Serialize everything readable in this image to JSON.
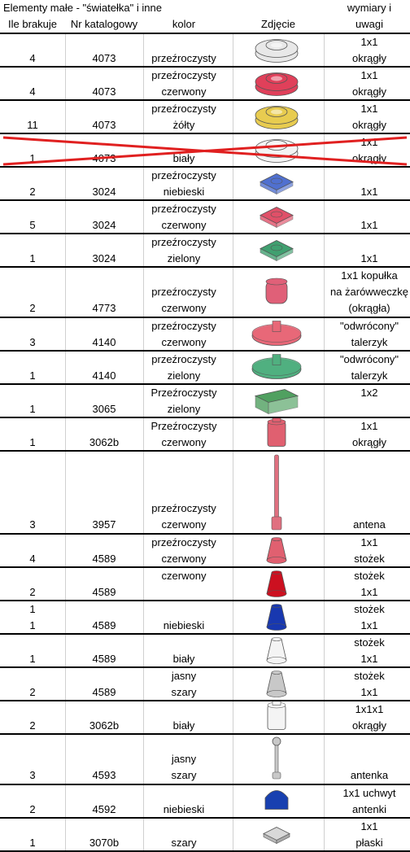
{
  "sheet": {
    "title": "Elementy małe - \"światełka\" i inne",
    "headers": {
      "missing": "Ile brakuje",
      "catalog": "Nr katalogowy",
      "color": "kolor",
      "photo": "Zdjęcie",
      "dims_1": "wymiary i",
      "dims_2": "uwagi"
    }
  },
  "rows": [
    {
      "missing": "4",
      "catalog": "4073",
      "color_1": "",
      "color_2": "przeźroczysty",
      "dims_1": "1x1",
      "dims_2": "okrągły",
      "icon": "round-plate-clear-icon",
      "fill": "#e8e8e8"
    },
    {
      "missing": "4",
      "catalog": "4073",
      "color_1": "przeźroczysty",
      "color_2": "czerwony",
      "dims_1": "1x1",
      "dims_2": "okrągły",
      "icon": "round-plate-red-icon",
      "fill": "#e0405a"
    },
    {
      "missing": "11",
      "catalog": "4073",
      "color_1": "przeźroczysty",
      "color_2": "żółty",
      "dims_1": "1x1",
      "dims_2": "okrągły",
      "icon": "round-plate-yellow-icon",
      "fill": "#e8cc50"
    },
    {
      "missing": "1",
      "catalog": "4073",
      "color_1": "",
      "color_2": "biały",
      "dims_1": "1x1",
      "dims_2": "okrągły",
      "icon": "round-plate-white-icon",
      "fill": "#f4f4f4",
      "struck": true
    },
    {
      "missing": "2",
      "catalog": "3024",
      "color_1": "przeźroczysty",
      "color_2": "niebieski",
      "dims_1": "",
      "dims_2": "1x1",
      "icon": "plate-blue-icon",
      "fill": "#5070d0"
    },
    {
      "missing": "5",
      "catalog": "3024",
      "color_1": "przeźroczysty",
      "color_2": "czerwony",
      "dims_1": "",
      "dims_2": "1x1",
      "icon": "plate-red-icon",
      "fill": "#e05068"
    },
    {
      "missing": "1",
      "catalog": "3024",
      "color_1": "przeźroczysty",
      "color_2": "zielony",
      "dims_1": "",
      "dims_2": "1x1",
      "icon": "plate-green-icon",
      "fill": "#40a070"
    },
    {
      "missing": "2",
      "catalog": "4773",
      "color_1": "przeźroczysty",
      "color_2": "czerwony",
      "dims_1": "1x1 kopułka",
      "dims_2": "na żarówweczkę",
      "dims_3": "(okrągła)",
      "icon": "dome-red-icon",
      "fill": "#e06078"
    },
    {
      "missing": "3",
      "catalog": "4140",
      "color_1": "przeźroczysty",
      "color_2": "czerwony",
      "dims_1": "\"odwrócony\"",
      "dims_2": "talerzyk",
      "icon": "dish-red-icon",
      "fill": "#e86878"
    },
    {
      "missing": "1",
      "catalog": "4140",
      "color_1": "przeźroczysty",
      "color_2": "zielony",
      "dims_1": "\"odwrócony\"",
      "dims_2": "talerzyk",
      "icon": "dish-green-icon",
      "fill": "#50b080"
    },
    {
      "missing": "1",
      "catalog": "3065",
      "color_1": "Przeźroczysty",
      "color_2": "zielony",
      "dims_1": "1x2",
      "dims_2": "",
      "icon": "brick-green-icon",
      "fill": "#50a060"
    },
    {
      "missing": "1",
      "catalog": "3062b",
      "color_1": "Przeźroczysty",
      "color_2": "czerwony",
      "dims_1": "1x1",
      "dims_2": "okrągły",
      "icon": "round-brick-red-icon",
      "fill": "#e06070"
    },
    {
      "missing": "3",
      "catalog": "3957",
      "color_1": "przeźroczysty",
      "color_2": "czerwony",
      "dims_1": "",
      "dims_2": "antena",
      "icon": "antenna-red-icon",
      "fill": "#e07080"
    },
    {
      "missing": "4",
      "catalog": "4589",
      "color_1": "przeźroczysty",
      "color_2": "czerwony",
      "dims_1": "1x1",
      "dims_2": "stożek",
      "icon": "cone-clear-red-icon",
      "fill": "#e06070"
    },
    {
      "missing": "2",
      "catalog": "4589",
      "color_1": "czerwony",
      "color_2": "",
      "dims_1": "stożek",
      "dims_2": "1x1",
      "icon": "cone-red-icon",
      "fill": "#cc1020"
    },
    {
      "missing": "1",
      "missing_2": "1",
      "catalog": "4589",
      "color_1": "",
      "color_2": "niebieski",
      "dims_1": "stożek",
      "dims_2": "1x1",
      "icon": "cone-blue-icon",
      "fill": "#1838b0"
    },
    {
      "missing": "1",
      "catalog": "4589",
      "color_1": "",
      "color_2": "biały",
      "dims_1": "stożek",
      "dims_2": "1x1",
      "icon": "cone-white-icon",
      "fill": "#f4f4f4"
    },
    {
      "missing": "2",
      "catalog": "4589",
      "color_1": "jasny",
      "color_2": "szary",
      "dims_1": "stożek",
      "dims_2": "1x1",
      "icon": "cone-grey-icon",
      "fill": "#c8c8c8"
    },
    {
      "missing": "2",
      "catalog": "3062b",
      "color_1": "",
      "color_2": "biały",
      "dims_1": "1x1x1",
      "dims_2": "okrągły",
      "icon": "round-brick-white-icon",
      "fill": "#f4f4f4"
    },
    {
      "missing": "3",
      "catalog": "4593",
      "color_1": "jasny",
      "color_2": "szary",
      "dims_1": "",
      "dims_2": "antenka",
      "icon": "antenna-grey-icon",
      "fill": "#c8c8c8"
    },
    {
      "missing": "2",
      "catalog": "4592",
      "color_1": "",
      "color_2": "niebieski",
      "dims_1": "1x1 uchwyt",
      "dims_2": "antenki",
      "icon": "antenna-holder-blue-icon",
      "fill": "#1840b0"
    },
    {
      "missing": "1",
      "catalog": "3070b",
      "color_1": "",
      "color_2": "szary",
      "dims_1": "1x1",
      "dims_2": "płaski",
      "icon": "tile-grey-icon",
      "fill": "#d8d8d8"
    }
  ]
}
